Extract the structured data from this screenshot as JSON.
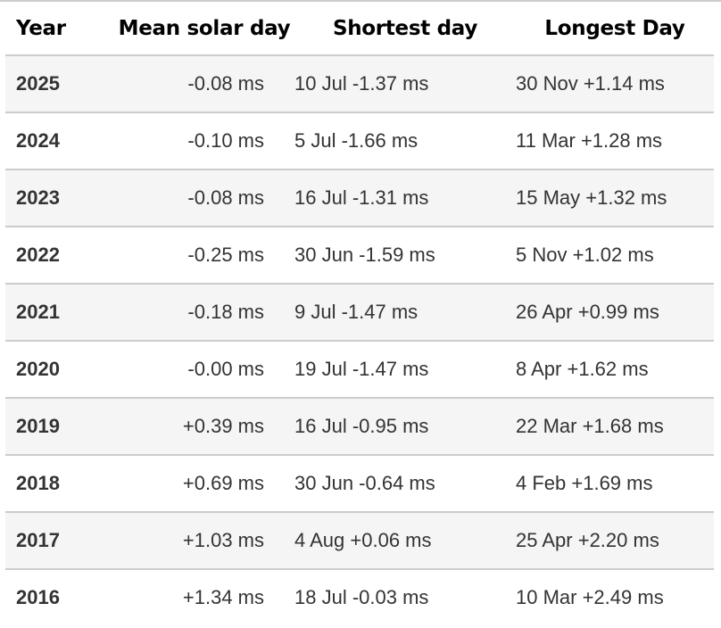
{
  "headers": [
    "Year",
    "Mean solar day",
    "Shortest day",
    "Longest Day"
  ],
  "rows": [
    {
      "year": "2025",
      "mean": "-0.08 ms",
      "shortest": "10 Jul -1.37 ms",
      "longest": "30 Nov +1.14 ms"
    },
    {
      "year": "2024",
      "mean": "-0.10 ms",
      "shortest": "5 Jul -1.66 ms",
      "longest": "11 Mar +1.28 ms"
    },
    {
      "year": "2023",
      "mean": "-0.08 ms",
      "shortest": "16 Jul -1.31 ms",
      "longest": "15 May +1.32 ms"
    },
    {
      "year": "2022",
      "mean": "-0.25 ms",
      "shortest": "30 Jun -1.59 ms",
      "longest": "5 Nov +1.02 ms"
    },
    {
      "year": "2021",
      "mean": "-0.18 ms",
      "shortest": "9 Jul -1.47 ms",
      "longest": "26 Apr +0.99 ms"
    },
    {
      "year": "2020",
      "mean": "-0.00 ms",
      "shortest": "19 Jul -1.47 ms",
      "longest": "8 Apr +1.62 ms"
    },
    {
      "year": "2019",
      "mean": "+0.39 ms",
      "shortest": "16 Jul -0.95 ms",
      "longest": "22 Mar +1.68 ms"
    },
    {
      "year": "2018",
      "mean": "+0.69 ms",
      "shortest": "30 Jun -0.64 ms",
      "longest": "4 Feb +1.69 ms"
    },
    {
      "year": "2017",
      "mean": "+1.03 ms",
      "shortest": "4 Aug +0.06 ms",
      "longest": "25 Apr +2.20 ms"
    },
    {
      "year": "2016",
      "mean": "+1.34 ms",
      "shortest": "18 Jul -0.03 ms",
      "longest": "10 Mar +2.49 ms"
    }
  ]
}
